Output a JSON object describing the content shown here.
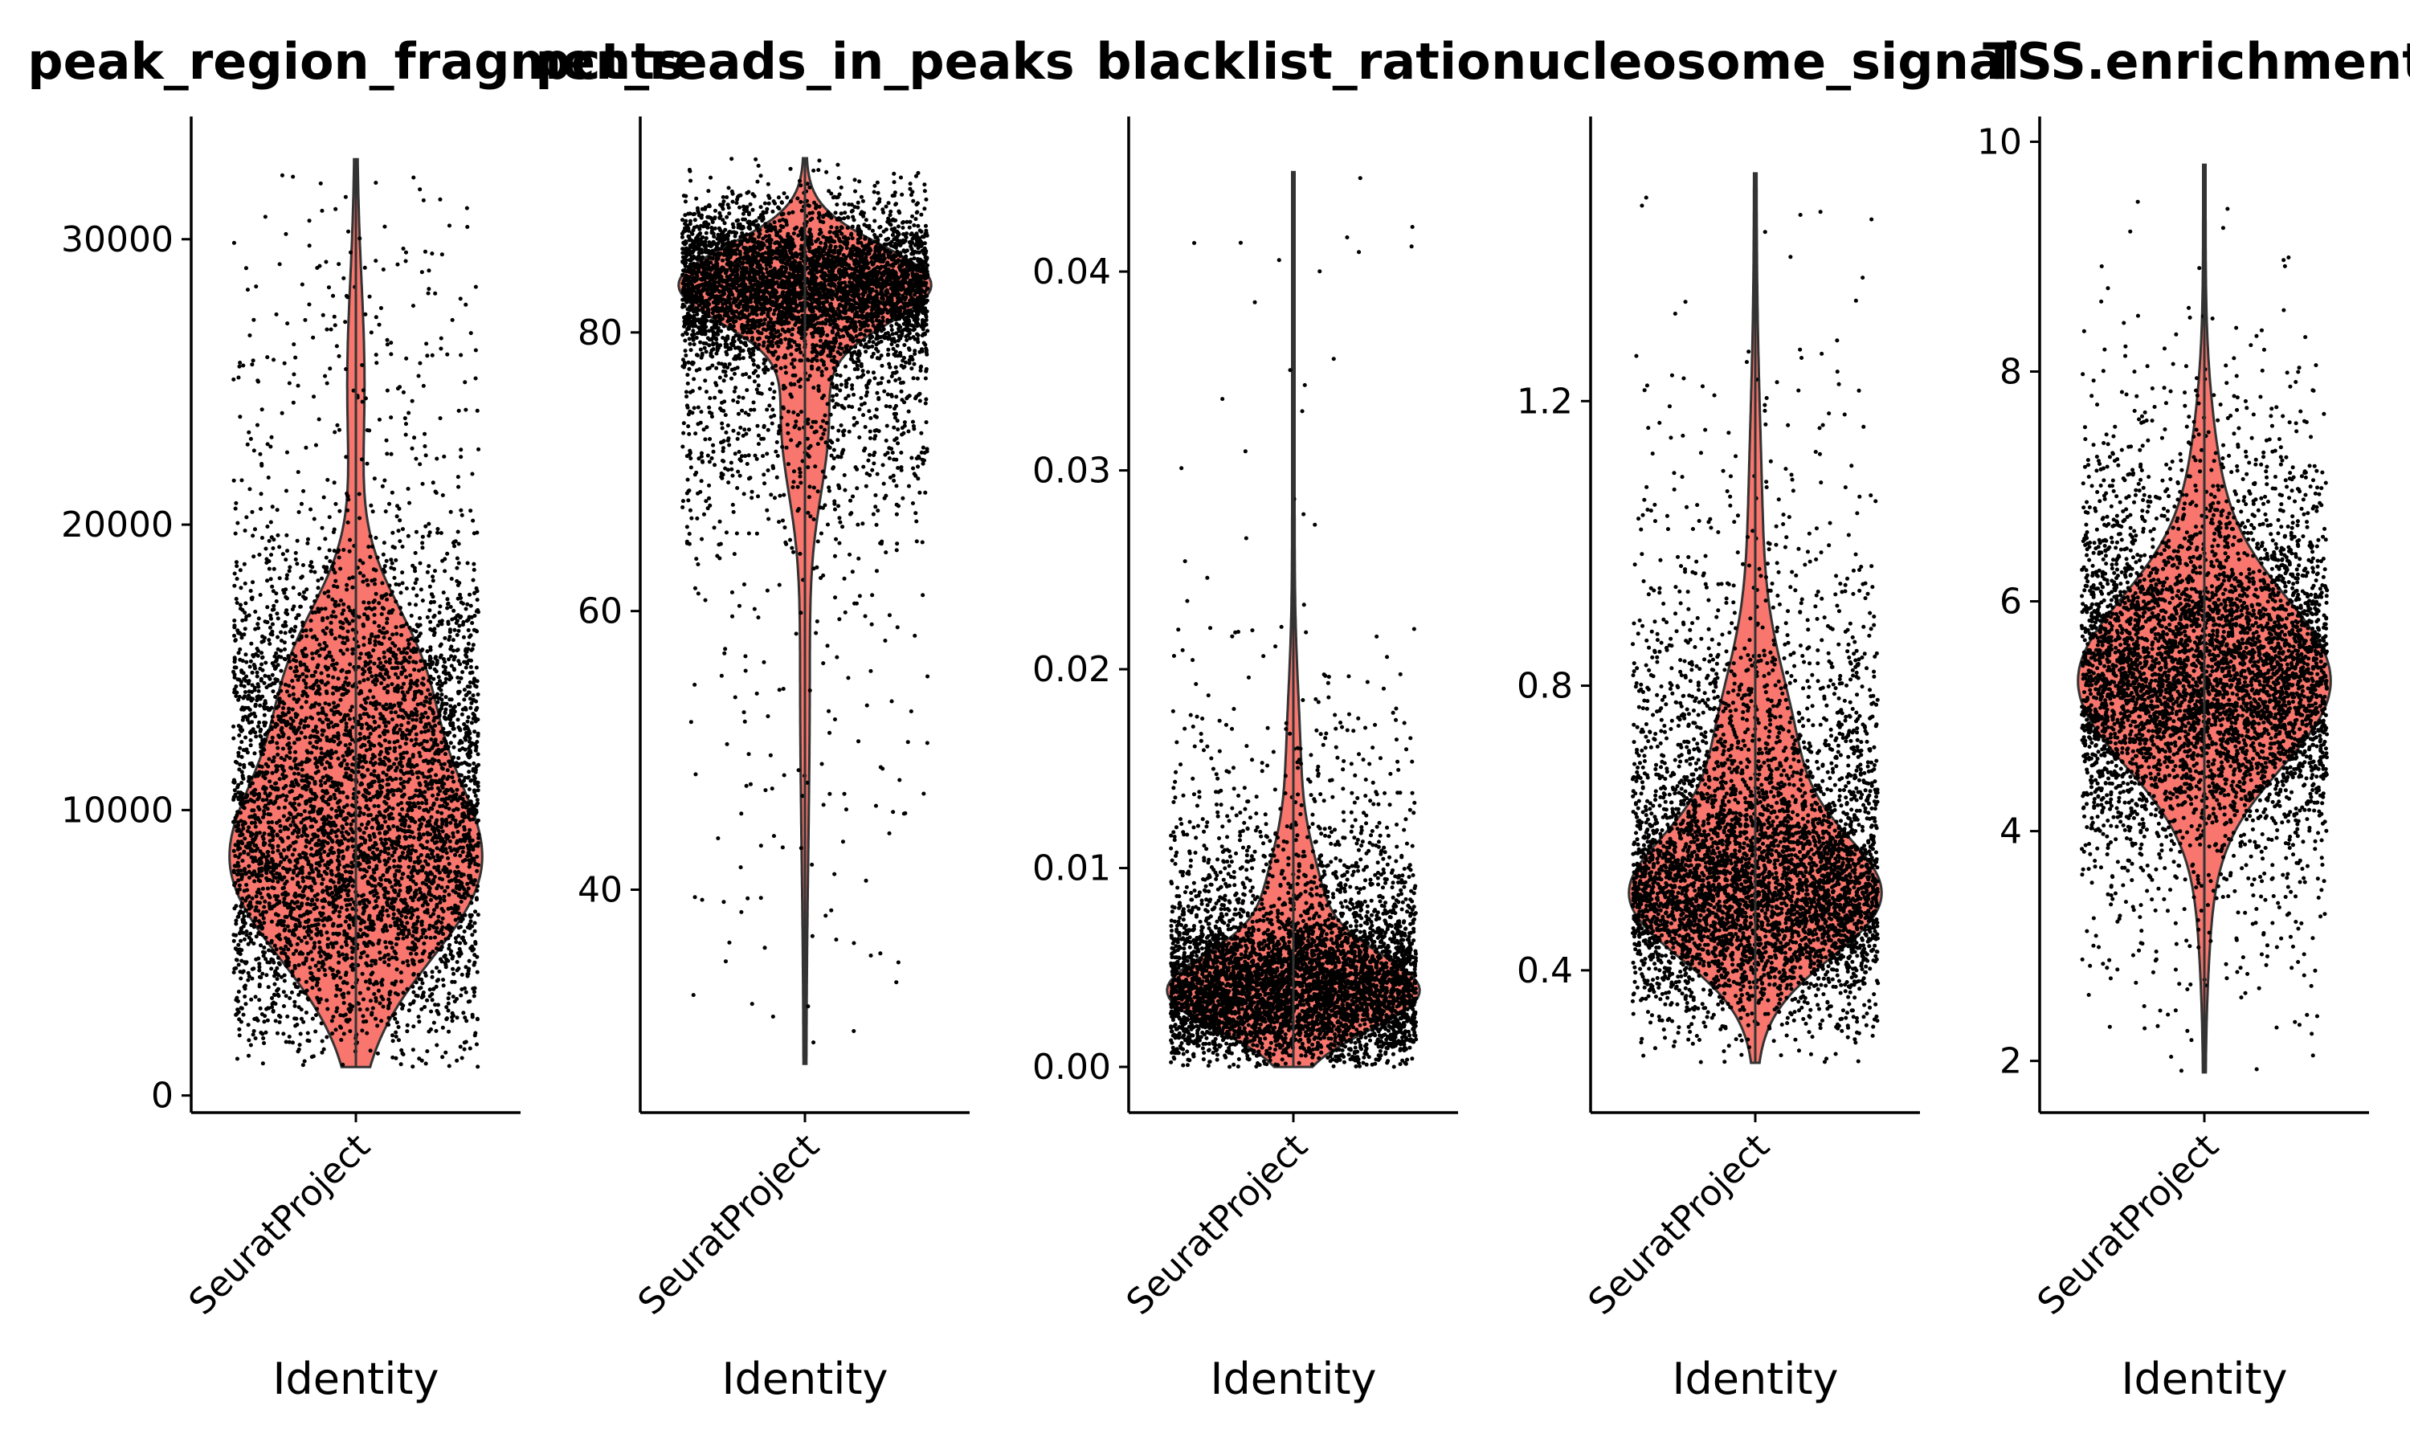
{
  "chart_data": [
    {
      "type": "violin",
      "title": "peak_region_fragments",
      "xlabel": "Identity",
      "category": "SeuratProject",
      "ylim": [
        -600,
        34300
      ],
      "yticks": [
        0,
        10000,
        20000,
        30000
      ],
      "ytick_labels": [
        "0",
        "10000",
        "20000",
        "30000"
      ],
      "min": 1000,
      "max": 32800,
      "median": 8200,
      "n_points": 5000,
      "fill": "#F8766D"
    },
    {
      "type": "violin",
      "title": "pct_reads_in_peaks",
      "xlabel": "Identity",
      "category": "SeuratProject",
      "ylim": [
        24,
        95.5
      ],
      "yticks": [
        40,
        60,
        80
      ],
      "ytick_labels": [
        "40",
        "60",
        "80"
      ],
      "min": 27.5,
      "max": 92.5,
      "median": 83.5,
      "n_points": 5000,
      "fill": "#F8766D"
    },
    {
      "type": "violin",
      "title": "blacklist_ratio",
      "xlabel": "Identity",
      "category": "SeuratProject",
      "ylim": [
        -0.0023,
        0.0478
      ],
      "yticks": [
        0.0,
        0.01,
        0.02,
        0.03,
        0.04
      ],
      "ytick_labels": [
        "0.00",
        "0.01",
        "0.02",
        "0.03",
        "0.04"
      ],
      "min": 0.0,
      "max": 0.045,
      "median": 0.0035,
      "n_points": 5000,
      "fill": "#F8766D"
    },
    {
      "type": "violin",
      "title": "nucleosome_signal",
      "xlabel": "Identity",
      "category": "SeuratProject",
      "ylim": [
        0.2,
        1.6
      ],
      "yticks": [
        0.4,
        0.8,
        1.2
      ],
      "ytick_labels": [
        "0.4",
        "0.8",
        "1.2"
      ],
      "min": 0.27,
      "max": 1.52,
      "median": 0.5,
      "n_points": 5000,
      "fill": "#F8766D"
    },
    {
      "type": "violin",
      "title": "TSS.enrichment",
      "xlabel": "Identity",
      "category": "SeuratProject",
      "ylim": [
        1.55,
        10.22
      ],
      "yticks": [
        2,
        4,
        6,
        8,
        10
      ],
      "ytick_labels": [
        "2",
        "4",
        "6",
        "8",
        "10"
      ],
      "min": 1.9,
      "max": 9.8,
      "median": 5.3,
      "n_points": 5000,
      "fill": "#F8766D"
    }
  ]
}
